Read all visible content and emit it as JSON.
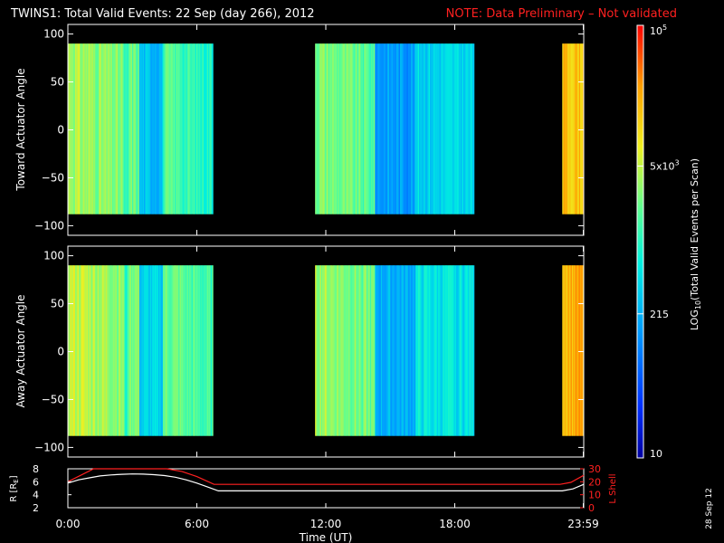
{
  "title": "TWINS1: Total Valid Events: 22 Sep (day 266), 2012",
  "note": "NOTE: Data Preliminary – Not validated",
  "date_stamp": "28 Sep 12",
  "colors": {
    "background": "#000000",
    "axis": "#ffffff",
    "note": "#ff2020",
    "lshell": "#ff2020",
    "radius": "#ffffff"
  },
  "chart_data": [
    {
      "type": "heatmap",
      "ylabel": "Toward Actuator Angle",
      "ylim": [
        -110,
        110
      ],
      "yticks": [
        -100,
        -50,
        0,
        50,
        100
      ],
      "xlim_hours": [
        0,
        24
      ],
      "data_window_angle": [
        -88,
        90
      ],
      "data_intervals_hours": [
        [
          0.0,
          6.75
        ],
        [
          11.5,
          18.9
        ],
        [
          23.0,
          24.0
        ]
      ],
      "scale": "log",
      "colorbar_label": "LOG10(Total Valid Events per Scan)",
      "colorbar_ticks": [
        "10",
        "215",
        "5x10^3",
        "10^5"
      ],
      "colorbar_tick_values": [
        10,
        215,
        5000,
        100000
      ],
      "colorbar_range": [
        10,
        100000
      ]
    },
    {
      "type": "heatmap",
      "ylabel": "Away Actuator Angle",
      "ylim": [
        -110,
        110
      ],
      "yticks": [
        -100,
        -50,
        0,
        50,
        100
      ],
      "xlim_hours": [
        0,
        24
      ],
      "data_window_angle": [
        -88,
        90
      ],
      "data_intervals_hours": [
        [
          0.0,
          6.75
        ],
        [
          11.5,
          18.9
        ],
        [
          23.0,
          24.0
        ]
      ],
      "scale": "log"
    },
    {
      "type": "line",
      "ylabel_left": "R [R",
      "ylabel_left_sub": "E",
      "ylabel_right": "L Shell",
      "xlabel": "Time (UT)",
      "xticks": [
        "0:00",
        "6:00",
        "12:00",
        "18:00",
        "23:59"
      ],
      "xtick_hours": [
        0,
        6,
        12,
        18,
        23.98
      ],
      "ylim_left": [
        2,
        8
      ],
      "yticks_left": [
        2,
        4,
        6,
        8
      ],
      "ylim_right": [
        0,
        30
      ],
      "yticks_right": [
        0,
        10,
        20,
        30
      ],
      "series": [
        {
          "axis": "left",
          "x": [
            0,
            0.5,
            1,
            1.5,
            2,
            2.5,
            3,
            3.5,
            4,
            4.5,
            5,
            5.5,
            6,
            6.5,
            7,
            8,
            10,
            12,
            14,
            16,
            18,
            20,
            22,
            23,
            23.5,
            24
          ],
          "y": [
            5.8,
            6.3,
            6.6,
            6.9,
            7.05,
            7.15,
            7.2,
            7.18,
            7.1,
            6.95,
            6.7,
            6.3,
            5.8,
            5.2,
            4.6,
            4.6,
            4.6,
            4.6,
            4.6,
            4.6,
            4.6,
            4.6,
            4.6,
            4.6,
            4.9,
            5.6
          ]
        },
        {
          "axis": "right",
          "x": [
            0,
            1.2,
            4.6,
            5.3,
            6.0,
            6.8,
            8,
            12,
            16,
            20,
            22.9,
            23.4,
            24
          ],
          "y": [
            20,
            31,
            31,
            28,
            24,
            18,
            18,
            18,
            18,
            18,
            18,
            19.5,
            25
          ]
        }
      ]
    }
  ]
}
